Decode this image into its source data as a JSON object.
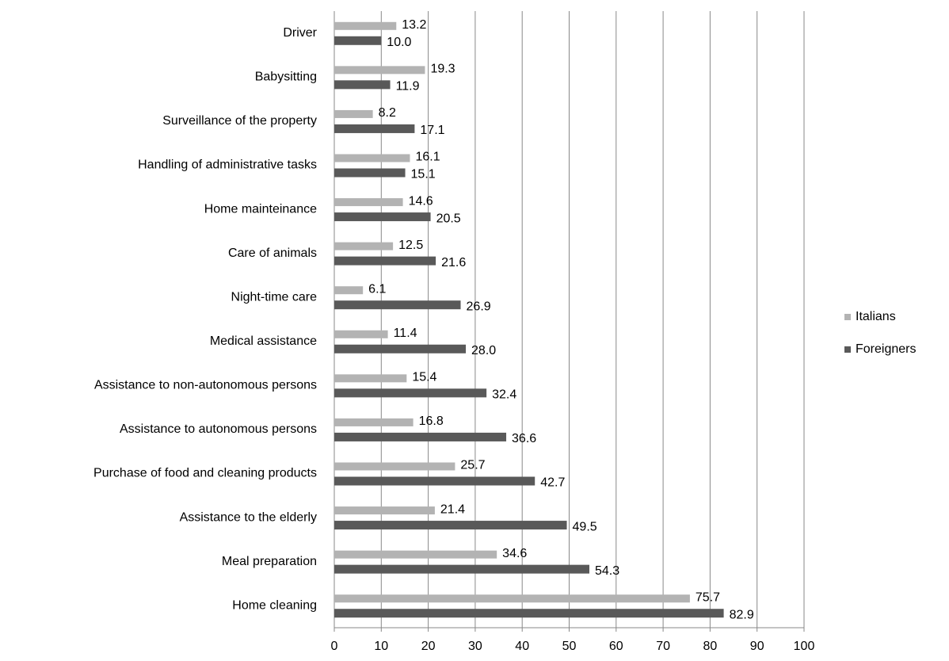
{
  "chart_data": {
    "type": "bar",
    "orientation": "horizontal",
    "categories": [
      "Driver",
      "Babysitting",
      "Surveillance of the property",
      "Handling of administrative tasks",
      "Home mainteinance",
      "Care of animals",
      "Night-time care",
      "Medical assistance",
      "Assistance to non-autonomous persons",
      "Assistance to autonomous persons",
      "Purchase of food and cleaning products",
      "Assistance to the elderly",
      "Meal preparation",
      "Home cleaning"
    ],
    "series": [
      {
        "name": "Italians",
        "color": "#b3b3b3",
        "values": [
          13.2,
          19.3,
          8.2,
          16.1,
          14.6,
          12.5,
          6.1,
          11.4,
          15.4,
          16.8,
          25.7,
          21.4,
          34.6,
          75.7
        ],
        "value_labels": [
          "13.2",
          "19.3",
          "8.2",
          "16.1",
          "14.6",
          "12.5",
          "6.1",
          "11.4",
          "15.4",
          "16.8",
          "25.7",
          "21.4",
          "34.6",
          "75.7"
        ]
      },
      {
        "name": "Foreigners",
        "color": "#595959",
        "values": [
          10.0,
          11.9,
          17.1,
          15.1,
          20.5,
          21.6,
          26.9,
          28.0,
          32.4,
          36.6,
          42.7,
          49.5,
          54.3,
          82.9
        ],
        "value_labels": [
          "10.0",
          "11.9",
          "17.1",
          "15.1",
          "20.5",
          "21.6",
          "26.9",
          "28.0",
          "32.4",
          "36.6",
          "42.7",
          "49.5",
          "54.3",
          "82.9"
        ]
      }
    ],
    "xlim": [
      0,
      100
    ],
    "xticks": [
      0,
      10,
      20,
      30,
      40,
      50,
      60,
      70,
      80,
      90,
      100
    ],
    "grid": true,
    "legend": "right"
  }
}
